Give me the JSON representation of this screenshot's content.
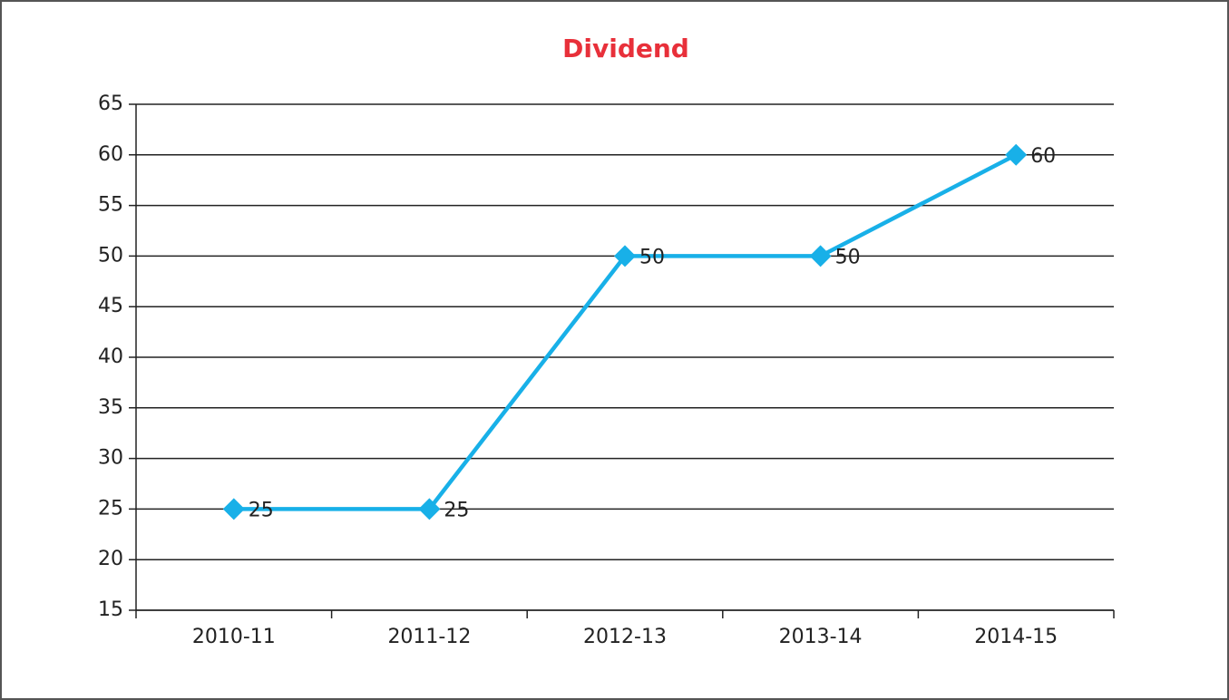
{
  "chart_data": {
    "type": "line",
    "title": "Dividend",
    "categories": [
      "2010-11",
      "2011-12",
      "2012-13",
      "2013-14",
      "2014-15"
    ],
    "series": [
      {
        "name": "Dividend",
        "color": "#18b0e8",
        "values": [
          25,
          25,
          50,
          50,
          60
        ]
      }
    ],
    "ylim": [
      15,
      65
    ],
    "yticks": [
      15,
      20,
      25,
      30,
      35,
      40,
      45,
      50,
      55,
      60,
      65
    ],
    "grid": true
  }
}
